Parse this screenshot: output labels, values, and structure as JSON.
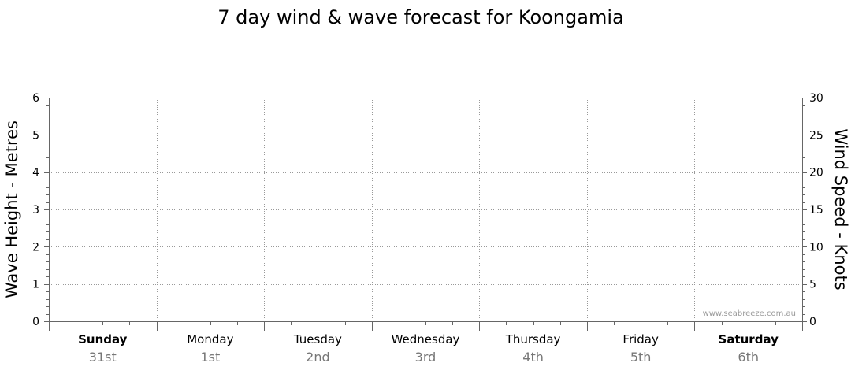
{
  "chart_data": {
    "type": "line",
    "title": "7 day wind & wave forecast for Koongamia",
    "y_left": {
      "label": "Wave Height - Metres",
      "range": [
        0,
        6
      ],
      "ticks": [
        "0",
        "1",
        "2",
        "3",
        "4",
        "5",
        "6"
      ]
    },
    "y_right": {
      "label": "Wind Speed - Knots",
      "range": [
        0,
        30
      ],
      "ticks": [
        "0",
        "5",
        "10",
        "15",
        "20",
        "25",
        "30"
      ]
    },
    "days": [
      {
        "name": "Sunday",
        "date": "31st",
        "bold": true
      },
      {
        "name": "Monday",
        "date": "1st",
        "bold": false
      },
      {
        "name": "Tuesday",
        "date": "2nd",
        "bold": false
      },
      {
        "name": "Wednesday",
        "date": "3rd",
        "bold": false
      },
      {
        "name": "Thursday",
        "date": "4th",
        "bold": false
      },
      {
        "name": "Friday",
        "date": "5th",
        "bold": false
      },
      {
        "name": "Saturday",
        "date": "6th",
        "bold": true
      }
    ],
    "grid": true,
    "series": [],
    "watermark": "www.seabreeze.com.au"
  }
}
